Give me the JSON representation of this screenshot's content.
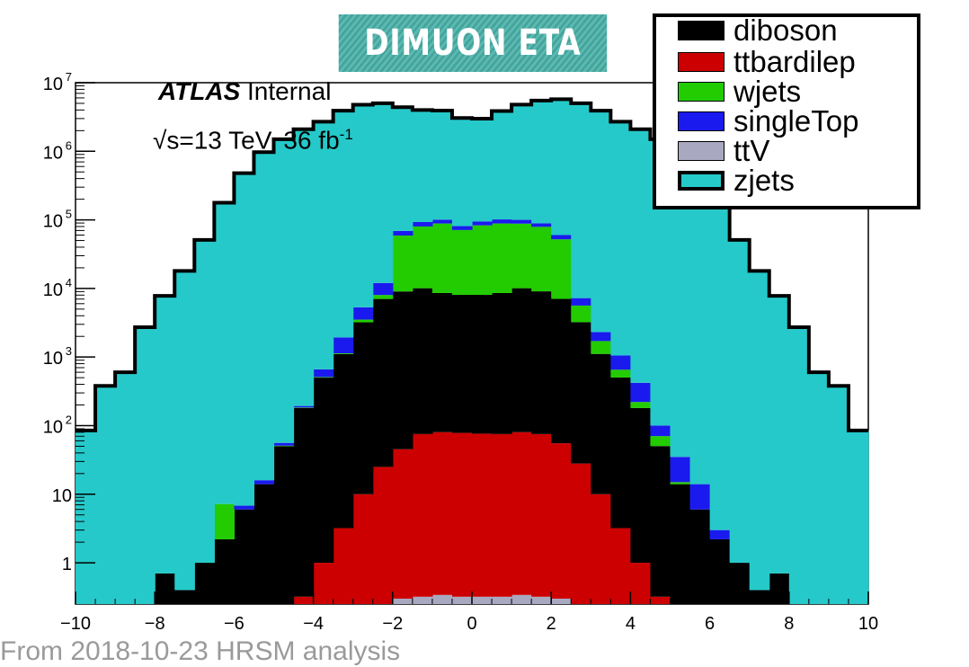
{
  "banner": {
    "title": "DIMUON ETA"
  },
  "text": {
    "atlas_bold": "ATLAS",
    "atlas_rest": " Internal",
    "energy_main": "√s=13 TeV, 36 fb",
    "energy_sup": "-1"
  },
  "footer": {
    "text": "From 2018-10-23 HRSM analysis"
  },
  "legend": {
    "entries": [
      {
        "label": "diboson",
        "color": "#000000"
      },
      {
        "label": "ttbardilep",
        "color": "#cc0000"
      },
      {
        "label": "wjets",
        "color": "#22cc00"
      },
      {
        "label": "singleTop",
        "color": "#1a1aee"
      },
      {
        "label": "ttV",
        "color": "#a8a8c0"
      },
      {
        "label": "zjets",
        "color": "#26c9c9"
      }
    ]
  },
  "chart_data": {
    "type": "area",
    "title": "DIMUON ETA",
    "xlabel": "",
    "ylabel": "",
    "xlim": [
      -10,
      10
    ],
    "ylim": [
      0.25,
      10000000
    ],
    "yscale": "log",
    "grid": false,
    "legend_position": "top-right",
    "x_ticks": [
      -10,
      -8,
      -6,
      -4,
      -2,
      0,
      2,
      4,
      6,
      8,
      10
    ],
    "x_tick_labels": [
      "−10",
      "−8",
      "−6",
      "−4",
      "−2",
      "0",
      "2",
      "4",
      "6",
      "8",
      "10"
    ],
    "y_ticks": [
      {
        "value": 1,
        "base": "1",
        "exp": ""
      },
      {
        "value": 10,
        "base": "10",
        "exp": ""
      },
      {
        "value": 100,
        "base": "10",
        "exp": "2"
      },
      {
        "value": 1000,
        "base": "10",
        "exp": "3"
      },
      {
        "value": 10000,
        "base": "10",
        "exp": "4"
      },
      {
        "value": 100000,
        "base": "10",
        "exp": "5"
      },
      {
        "value": 1000000,
        "base": "10",
        "exp": "6"
      },
      {
        "value": 10000000,
        "base": "10",
        "exp": "7"
      }
    ],
    "bin_edges": [
      -10,
      -9.5,
      -9,
      -8.5,
      -8,
      -7.5,
      -7,
      -6.5,
      -6,
      -5.5,
      -5,
      -4.5,
      -4,
      -3.5,
      -3,
      -2.5,
      -2,
      -1.5,
      -1,
      -0.5,
      0,
      0.5,
      1,
      1.5,
      2,
      2.5,
      3,
      3.5,
      4,
      4.5,
      5,
      5.5,
      6,
      6.5,
      7,
      7.5,
      8,
      8.5,
      9,
      9.5,
      10
    ],
    "stack_order": [
      "ttV",
      "ttbardilep",
      "diboson",
      "wjets",
      "singleTop",
      "zjets"
    ],
    "series": [
      {
        "name": "ttV",
        "color": "#a8a8c0",
        "values": [
          0,
          0,
          0,
          0,
          0,
          0,
          0,
          0,
          0,
          0,
          0,
          0,
          0,
          0,
          0,
          0,
          0.3,
          0.32,
          0.34,
          0.32,
          0.32,
          0.32,
          0.34,
          0.32,
          0.3,
          0,
          0,
          0,
          0,
          0,
          0,
          0,
          0,
          0,
          0,
          0,
          0,
          0,
          0,
          0
        ]
      },
      {
        "name": "ttbardilep",
        "color": "#cc0000",
        "values": [
          0,
          0,
          0,
          0,
          0,
          0,
          0,
          0,
          0,
          0,
          0,
          0.32,
          1,
          3.2,
          10,
          25,
          45,
          75,
          80,
          78,
          76,
          75,
          80,
          75,
          55,
          28,
          10,
          3.2,
          1,
          0.32,
          0,
          0,
          0,
          0,
          0,
          0,
          0,
          0,
          0,
          0
        ]
      },
      {
        "name": "diboson",
        "color": "#000000",
        "values": [
          0,
          0,
          0,
          0,
          0.7,
          0.4,
          1,
          2.2,
          6,
          14,
          50,
          180,
          500,
          1100,
          3200,
          7000,
          9000,
          10000,
          8500,
          8000,
          8000,
          8500,
          10000,
          9000,
          7000,
          3200,
          1100,
          500,
          180,
          50,
          14,
          6,
          2.2,
          1,
          0.4,
          0.7,
          0,
          0,
          0,
          0
        ]
      },
      {
        "name": "wjets",
        "color": "#22cc00",
        "values": [
          0,
          0,
          0,
          0,
          0,
          0,
          0,
          5,
          0,
          0,
          1,
          3,
          10,
          30,
          300,
          1000,
          50000,
          70000,
          80000,
          63000,
          75000,
          80000,
          78000,
          70000,
          45000,
          2400,
          600,
          150,
          40,
          20,
          1,
          0,
          0,
          0,
          0,
          0,
          0,
          0,
          0,
          0
        ]
      },
      {
        "name": "singleTop",
        "color": "#1a1aee",
        "values": [
          0,
          0,
          0,
          0,
          0,
          0,
          0,
          0,
          0.8,
          2,
          5,
          10,
          150,
          800,
          1800,
          4000,
          10000,
          13000,
          12000,
          10000,
          12000,
          13000,
          12000,
          10000,
          8000,
          1600,
          600,
          400,
          200,
          30,
          20,
          8,
          0.8,
          0,
          0,
          0,
          0,
          0,
          0,
          0
        ]
      },
      {
        "name": "zjets",
        "color": "#26c9c9",
        "values": [
          85,
          380,
          600,
          2720,
          7800,
          18000,
          51000,
          178000,
          480000,
          970000,
          1500000,
          2100000,
          2700000,
          3900000,
          4770000,
          5000000,
          4330000,
          3910000,
          3820000,
          2980000,
          2890000,
          3770000,
          4690000,
          5390000,
          5690000,
          5000000,
          3900000,
          2700000,
          2100000,
          1500000,
          970000,
          480000,
          178000,
          51000,
          18000,
          7800,
          2720,
          600,
          380,
          85
        ]
      }
    ]
  }
}
